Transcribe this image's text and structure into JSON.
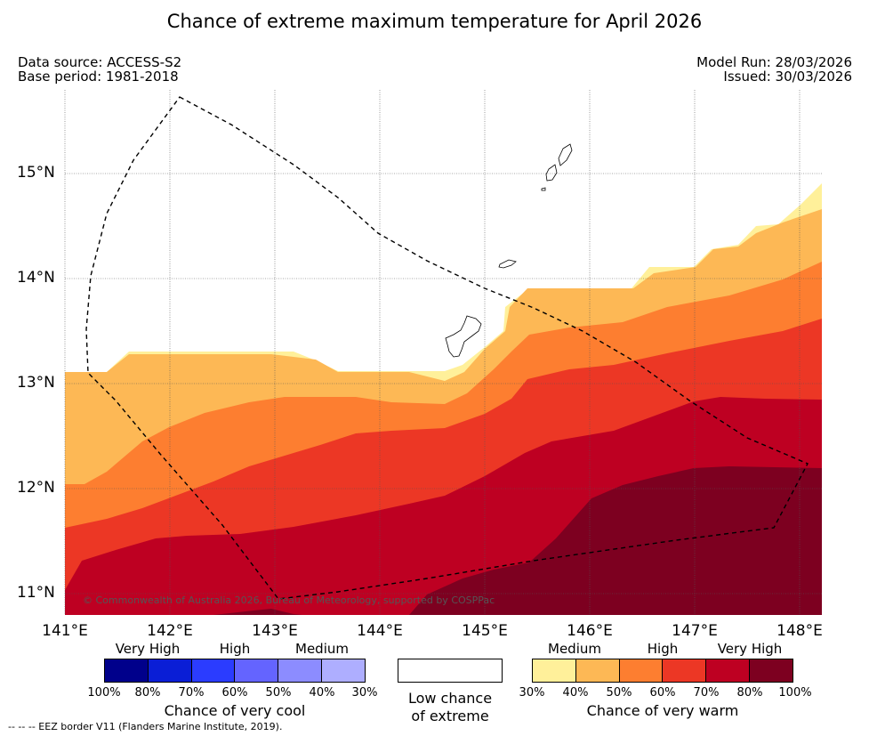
{
  "title": "Chance of extreme maximum temperature for April 2026",
  "meta": {
    "data_source": "Data source: ACCESS-S2",
    "base_period": "Base period: 1981-2018",
    "model_run": "Model Run: 28/03/2026",
    "issued": "Issued: 30/03/2026"
  },
  "axes": {
    "lon": [
      "141°E",
      "142°E",
      "143°E",
      "144°E",
      "145°E",
      "146°E",
      "147°E",
      "148°E"
    ],
    "lat": [
      "15°N",
      "14°N",
      "13°N",
      "12°N",
      "11°N"
    ]
  },
  "copyright": "© Commonwealth of Australia 2026, Bureau of Meteorology, supported by COSPPac",
  "legend": {
    "cool": {
      "labels": [
        "Very High",
        "High",
        "Medium"
      ],
      "percent": [
        "100%",
        "80%",
        "70%",
        "60%",
        "50%",
        "40%",
        "30%"
      ],
      "colors": [
        "#00008b",
        "#0a1ed6",
        "#2b3cff",
        "#6464ff",
        "#8c8cff",
        "#aeaeff"
      ],
      "caption": "Chance of very cool"
    },
    "low": {
      "caption_line1": "Low chance",
      "caption_line2": "of extreme"
    },
    "warm": {
      "labels": [
        "Medium",
        "High",
        "Very High"
      ],
      "percent": [
        "30%",
        "40%",
        "50%",
        "60%",
        "70%",
        "80%",
        "100%"
      ],
      "colors": [
        "#fff09a",
        "#fdb855",
        "#fd7e30",
        "#ec3725",
        "#be0022",
        "#7d0020"
      ],
      "caption": "Chance of very warm"
    }
  },
  "eez_note": "--  --  -- EEZ border V11 (Flanders Marine Institute, 2019)."
}
